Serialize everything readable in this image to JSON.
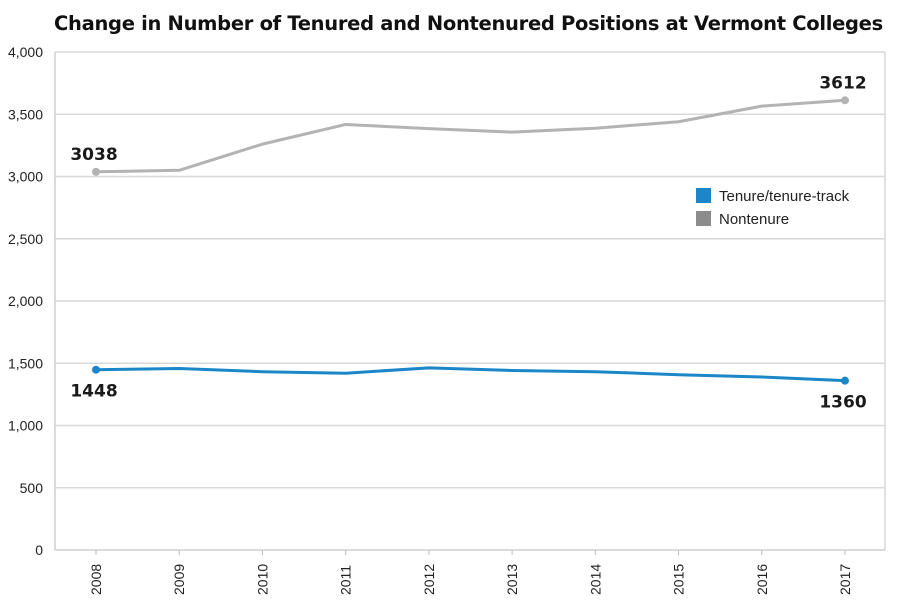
{
  "chart_data": {
    "type": "line",
    "title": "Change in Number of Tenured and Nontenured Positions at Vermont Colleges",
    "xlabel": "",
    "ylabel": "",
    "x": [
      "2008",
      "2009",
      "2010",
      "2011",
      "2012",
      "2013",
      "2014",
      "2015",
      "2016",
      "2017"
    ],
    "ylim": [
      0,
      4000
    ],
    "yticks": [
      0,
      500,
      1000,
      1500,
      2000,
      2500,
      3000,
      3500,
      4000
    ],
    "ytick_labels": [
      "0",
      "500",
      "1,000",
      "1,500",
      "2,000",
      "2,500",
      "3,000",
      "3,500",
      "4,000"
    ],
    "grid": true,
    "legend_position": "right",
    "series": [
      {
        "name": "Tenure/tenure-track",
        "color": "#1b86c8",
        "values": [
          1448,
          1458,
          1432,
          1420,
          1463,
          1442,
          1432,
          1408,
          1390,
          1360
        ],
        "labels": [
          {
            "index": 0,
            "text": "1448",
            "position": "below"
          },
          {
            "index": 9,
            "text": "1360",
            "position": "below"
          }
        ]
      },
      {
        "name": "Nontenure",
        "color": "#b3b3b3",
        "legend_color": "#8c8c8c",
        "values": [
          3038,
          3050,
          3260,
          3418,
          3385,
          3356,
          3388,
          3440,
          3565,
          3612
        ],
        "labels": [
          {
            "index": 0,
            "text": "3038",
            "position": "above"
          },
          {
            "index": 9,
            "text": "3612",
            "position": "above"
          }
        ]
      }
    ]
  }
}
